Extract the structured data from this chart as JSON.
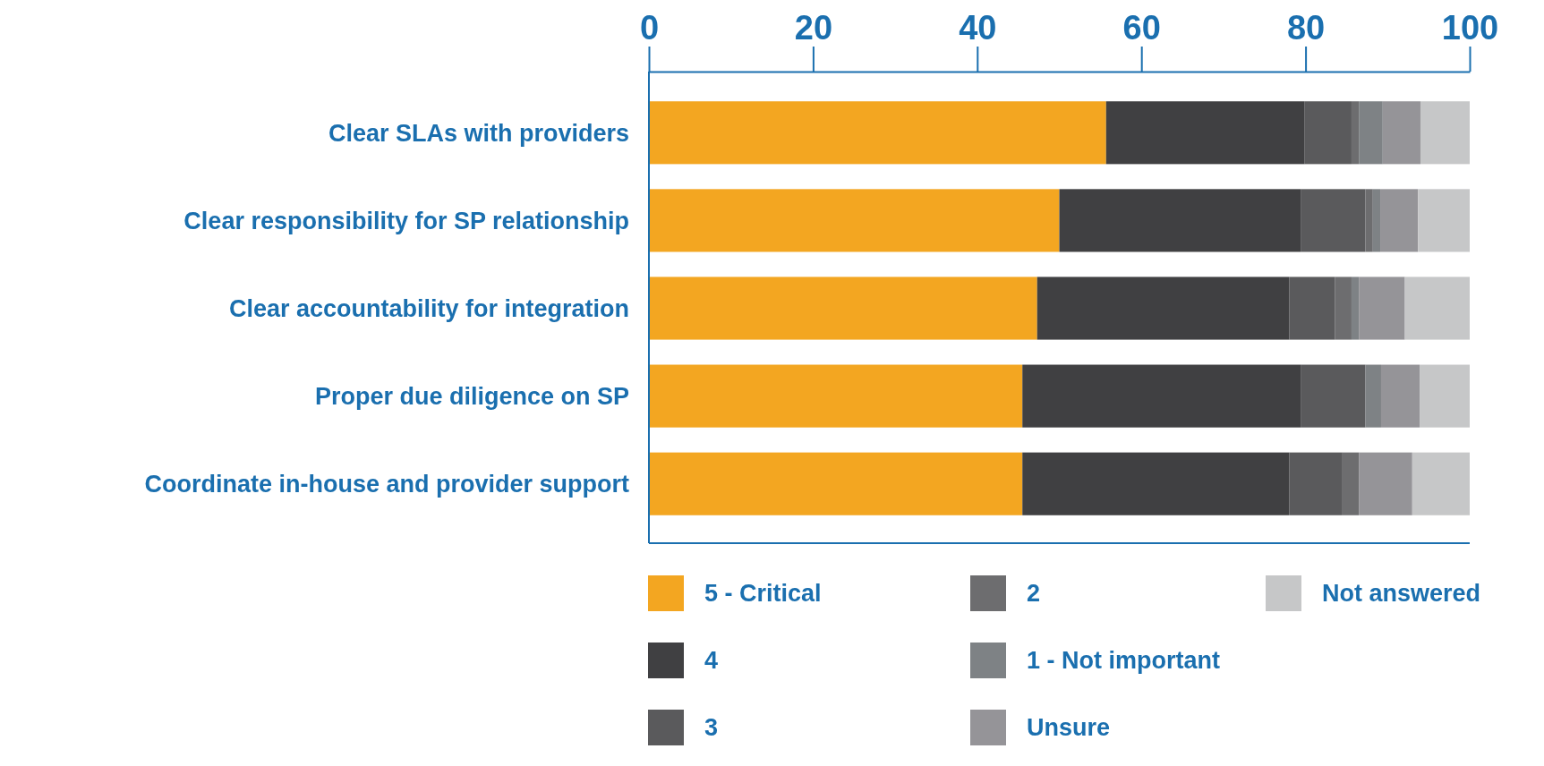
{
  "chart_data": {
    "type": "bar",
    "orientation": "horizontal",
    "stacked": true,
    "categories": [
      "Clear SLAs with providers",
      "Clear responsibility for SP relationship",
      "Clear accountability for integration",
      "Proper due diligence on SP",
      "Coordinate in-house and provider support"
    ],
    "series": [
      {
        "name": "5 - Critical",
        "color": "#f3a621",
        "values": [
          55.7,
          50.0,
          47.3,
          45.5,
          45.5
        ]
      },
      {
        "name": "4",
        "color": "#404042",
        "values": [
          24.2,
          29.4,
          30.7,
          33.9,
          32.5
        ]
      },
      {
        "name": "3",
        "color": "#5a5a5c",
        "values": [
          5.7,
          7.9,
          5.6,
          7.9,
          6.5
        ]
      },
      {
        "name": "2",
        "color": "#6d6d6f",
        "values": [
          0.9,
          0.9,
          2.0,
          0,
          2.0
        ]
      },
      {
        "name": "1 - Not important",
        "color": "#7e8285",
        "values": [
          2.9,
          0.9,
          0.9,
          1.9,
          0
        ]
      },
      {
        "name": "Unsure",
        "color": "#959498",
        "values": [
          4.6,
          4.6,
          5.6,
          4.7,
          6.5
        ]
      },
      {
        "name": "Not answered",
        "color": "#c6c7c8",
        "values": [
          6.0,
          6.3,
          7.9,
          6.1,
          7.0
        ]
      }
    ],
    "xlim": [
      0,
      100
    ],
    "xticks": [
      0,
      20,
      40,
      60,
      80,
      100
    ],
    "grid": false,
    "legend": "bottom"
  }
}
